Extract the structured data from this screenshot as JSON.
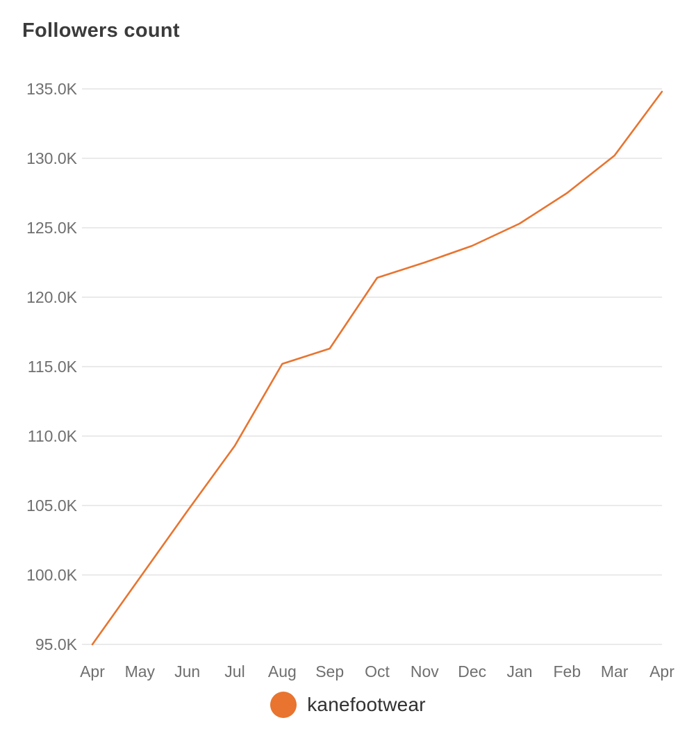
{
  "page": {
    "title": "Followers count"
  },
  "legend": {
    "label": "kanefootwear"
  },
  "colors": {
    "accent_orange": "#E8742F",
    "grid": "#E4E4E4",
    "tick_text": "#6F6F6F",
    "title_text": "#3B3B3B",
    "legend_text": "#303030",
    "background": "#FFFFFF"
  },
  "chart_data": {
    "type": "line",
    "title": "Followers count",
    "x": [
      "Apr",
      "May",
      "Jun",
      "Jul",
      "Aug",
      "Sep",
      "Oct",
      "Nov",
      "Dec",
      "Jan",
      "Feb",
      "Mar",
      "Apr"
    ],
    "series": [
      {
        "name": "kanefootwear",
        "color": "#E8742F",
        "values_thousands": [
          95.0,
          99.8,
          104.6,
          109.3,
          115.2,
          116.3,
          121.4,
          122.5,
          123.7,
          125.3,
          127.5,
          130.2,
          134.8
        ]
      }
    ],
    "xlabel": "",
    "ylabel": "",
    "ylim_thousands": [
      95,
      135
    ],
    "y_tick_values_thousands": [
      95,
      100,
      105,
      110,
      115,
      120,
      125,
      130,
      135
    ],
    "y_tick_labels": [
      "95.0K",
      "100.0K",
      "105.0K",
      "110.0K",
      "115.0K",
      "120.0K",
      "125.0K",
      "130.0K",
      "135.0K"
    ],
    "grid": "horizontal-only",
    "legend_position": "bottom-center"
  }
}
